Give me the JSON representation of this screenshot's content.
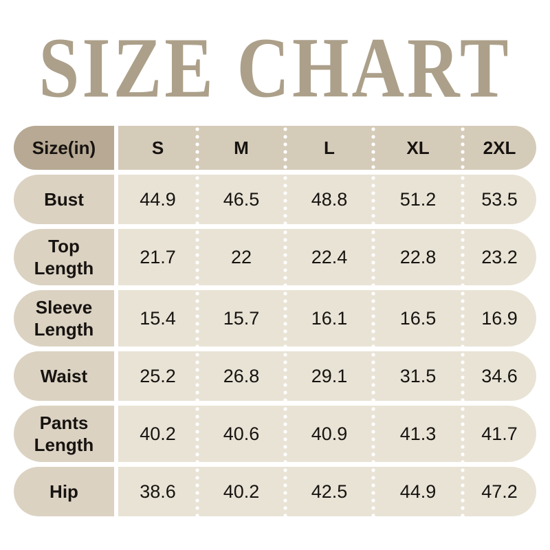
{
  "title": "SIZE CHART",
  "colors": {
    "page_bg": "#FFFFFF",
    "title_text": "#ACA08A",
    "header_label_bg": "#B7A993",
    "header_data_bg": "#D5CBB9",
    "row_label_bg": "#DBD2C2",
    "row_data_bg": "#E9E3D6",
    "table_text": "#161310",
    "divider_dots": "#FFFFFF"
  },
  "table": {
    "unit_header": "Size(in)",
    "columns": [
      "S",
      "M",
      "L",
      "XL",
      "2XL"
    ],
    "rows": [
      {
        "label": "Bust",
        "values": [
          "44.9",
          "46.5",
          "48.8",
          "51.2",
          "53.5"
        ]
      },
      {
        "label": "Top\nLength",
        "values": [
          "21.7",
          "22",
          "22.4",
          "22.8",
          "23.2"
        ]
      },
      {
        "label": "Sleeve\nLength",
        "values": [
          "15.4",
          "15.7",
          "16.1",
          "16.5",
          "16.9"
        ]
      },
      {
        "label": "Waist",
        "values": [
          "25.2",
          "26.8",
          "29.1",
          "31.5",
          "34.6"
        ]
      },
      {
        "label": "Pants\nLength",
        "values": [
          "40.2",
          "40.6",
          "40.9",
          "41.3",
          "41.7"
        ]
      },
      {
        "label": "Hip",
        "values": [
          "38.6",
          "40.2",
          "42.5",
          "44.9",
          "47.2"
        ]
      }
    ]
  },
  "chart_data": {
    "type": "table",
    "title": "SIZE CHART",
    "unit": "inches",
    "columns": [
      "Size(in)",
      "S",
      "M",
      "L",
      "XL",
      "2XL"
    ],
    "rows": [
      {
        "measure": "Bust",
        "S": 44.9,
        "M": 46.5,
        "L": 48.8,
        "XL": 51.2,
        "2XL": 53.5
      },
      {
        "measure": "Top Length",
        "S": 21.7,
        "M": 22,
        "L": 22.4,
        "XL": 22.8,
        "2XL": 23.2
      },
      {
        "measure": "Sleeve Length",
        "S": 15.4,
        "M": 15.7,
        "L": 16.1,
        "XL": 16.5,
        "2XL": 16.9
      },
      {
        "measure": "Waist",
        "S": 25.2,
        "M": 26.8,
        "L": 29.1,
        "XL": 31.5,
        "2XL": 34.6
      },
      {
        "measure": "Pants Length",
        "S": 40.2,
        "M": 40.6,
        "L": 40.9,
        "XL": 41.3,
        "2XL": 41.7
      },
      {
        "measure": "Hip",
        "S": 38.6,
        "M": 40.2,
        "L": 42.5,
        "XL": 44.9,
        "2XL": 47.2
      }
    ]
  }
}
